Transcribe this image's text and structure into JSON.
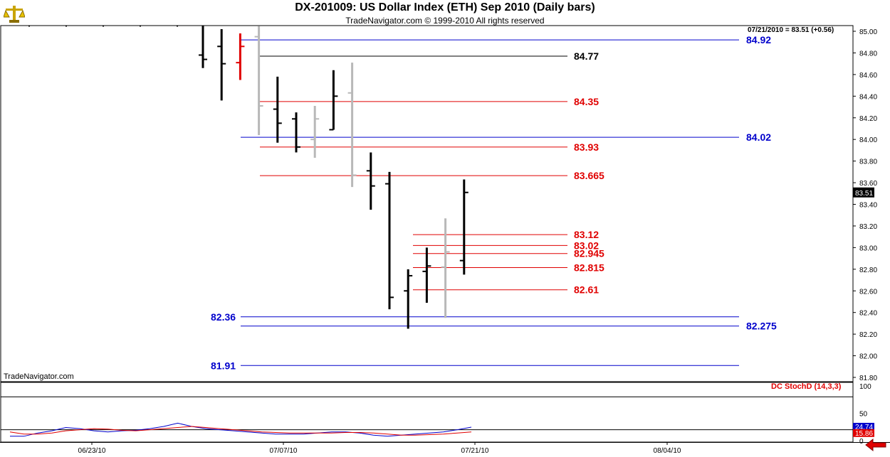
{
  "header": {
    "title": "DX-201009:  US Dollar Index (ETH) Sep 2010  (Daily bars)",
    "subtitle": "TradeNavigator.com © 1999-2010 All rights reserved",
    "readout": "07/21/2010 = 83.51 (+0.56)",
    "brand": "TradeNavigator.com",
    "indicator_label": "DC StochD (14,3,3)",
    "logo_icon": "balance-scale-icon",
    "back_icon": "back-arrow-icon"
  },
  "colors": {
    "blue": "#0000cc",
    "red": "#e00000",
    "black": "#000000",
    "gray": "#b8b8b8",
    "grid": "#000000"
  },
  "chart_data": [
    {
      "type": "ohlc",
      "title": "DX-201009:  US Dollar Index (ETH) Sep 2010  (Daily bars)",
      "ylim": [
        81.8,
        85.05
      ],
      "y_ticks": [
        "85.00",
        "84.80",
        "84.60",
        "84.40",
        "84.20",
        "84.00",
        "83.80",
        "83.60",
        "83.40",
        "83.20",
        "83.00",
        "82.80",
        "82.60",
        "82.40",
        "82.20",
        "82.00",
        "81.80"
      ],
      "x_ticks": [
        "06/23/10",
        "07/07/10",
        "07/21/10",
        "08/04/10"
      ],
      "last_price_label": "83.51",
      "bars": [
        {
          "o": 84.78,
          "h": 85.05,
          "l": 84.66,
          "c": 84.74,
          "color": "black"
        },
        {
          "o": 84.86,
          "h": 85.02,
          "l": 84.36,
          "c": 84.7,
          "color": "black"
        },
        {
          "o": 84.71,
          "h": 84.98,
          "l": 84.55,
          "c": 84.86,
          "color": "red"
        },
        {
          "o": 84.95,
          "h": 85.05,
          "l": 84.04,
          "c": 84.31,
          "color": "gray"
        },
        {
          "o": 84.28,
          "h": 84.58,
          "l": 83.97,
          "c": 84.15,
          "color": "black"
        },
        {
          "o": 84.19,
          "h": 84.25,
          "l": 83.88,
          "c": 83.93,
          "color": "black"
        },
        {
          "o": 84.0,
          "h": 84.31,
          "l": 83.83,
          "c": 84.19,
          "color": "gray"
        },
        {
          "o": 84.09,
          "h": 84.64,
          "l": 84.09,
          "c": 84.4,
          "color": "black"
        },
        {
          "o": 84.43,
          "h": 84.71,
          "l": 83.56,
          "c": 83.67,
          "color": "gray"
        },
        {
          "o": 83.71,
          "h": 83.88,
          "l": 83.35,
          "c": 83.57,
          "color": "black"
        },
        {
          "o": 83.59,
          "h": 83.7,
          "l": 82.43,
          "c": 82.54,
          "color": "black"
        },
        {
          "o": 82.6,
          "h": 82.8,
          "l": 82.25,
          "c": 82.74,
          "color": "black"
        },
        {
          "o": 82.78,
          "h": 83.0,
          "l": 82.49,
          "c": 82.83,
          "color": "black"
        },
        {
          "o": 82.82,
          "h": 83.27,
          "l": 82.35,
          "c": 82.96,
          "color": "gray"
        },
        {
          "o": 82.88,
          "h": 83.63,
          "l": 82.75,
          "c": 83.51,
          "color": "black"
        }
      ],
      "levels": [
        {
          "value": 84.92,
          "label": "84.92",
          "color": "blue",
          "label_side": "right"
        },
        {
          "value": 84.77,
          "label": "84.77",
          "color": "black",
          "label_side": "mid"
        },
        {
          "value": 84.35,
          "label": "84.35",
          "color": "red",
          "label_side": "mid"
        },
        {
          "value": 84.02,
          "label": "84.02",
          "color": "blue",
          "label_side": "right"
        },
        {
          "value": 83.93,
          "label": "83.93",
          "color": "red",
          "label_side": "mid"
        },
        {
          "value": 83.665,
          "label": "83.665",
          "color": "red",
          "label_side": "mid"
        },
        {
          "value": 83.12,
          "label": "83.12",
          "color": "red",
          "label_side": "mid"
        },
        {
          "value": 83.02,
          "label": "83.02",
          "color": "red",
          "label_side": "mid"
        },
        {
          "value": 82.945,
          "label": "82.945",
          "color": "red",
          "label_side": "mid"
        },
        {
          "value": 82.815,
          "label": "82.815",
          "color": "red",
          "label_side": "mid"
        },
        {
          "value": 82.61,
          "label": "82.61",
          "color": "red",
          "label_side": "mid"
        },
        {
          "value": 82.36,
          "label": "82.36",
          "color": "blue",
          "label_side": "left"
        },
        {
          "value": 82.275,
          "label": "82.275",
          "color": "blue",
          "label_side": "right"
        },
        {
          "value": 81.91,
          "label": "81.91",
          "color": "blue",
          "label_side": "left"
        }
      ]
    },
    {
      "type": "line",
      "title": "DC StochD (14,3,3)",
      "ylim": [
        0,
        100
      ],
      "y_ticks": [
        "100",
        "50",
        "0"
      ],
      "reference_lines": [
        80,
        20
      ],
      "value_labels": [
        "24.74",
        "15.86"
      ],
      "series": [
        {
          "name": "",
          "color": "blue",
          "values": [
            8,
            8,
            14,
            18,
            24,
            22,
            18,
            16,
            18,
            19,
            22,
            26,
            32,
            26,
            22,
            20,
            18,
            16,
            14,
            12,
            12,
            12,
            14,
            16,
            16,
            14,
            10,
            8,
            10,
            12,
            14,
            16,
            20,
            24.74
          ]
        },
        {
          "name": "",
          "color": "red",
          "values": [
            16,
            12,
            12,
            14,
            18,
            20,
            22,
            21,
            19,
            18,
            20,
            22,
            24,
            26,
            24,
            22,
            20,
            18,
            16,
            15,
            14,
            14,
            14,
            14,
            15,
            15,
            14,
            12,
            10,
            10,
            11,
            12,
            14,
            15.86
          ]
        }
      ]
    }
  ]
}
